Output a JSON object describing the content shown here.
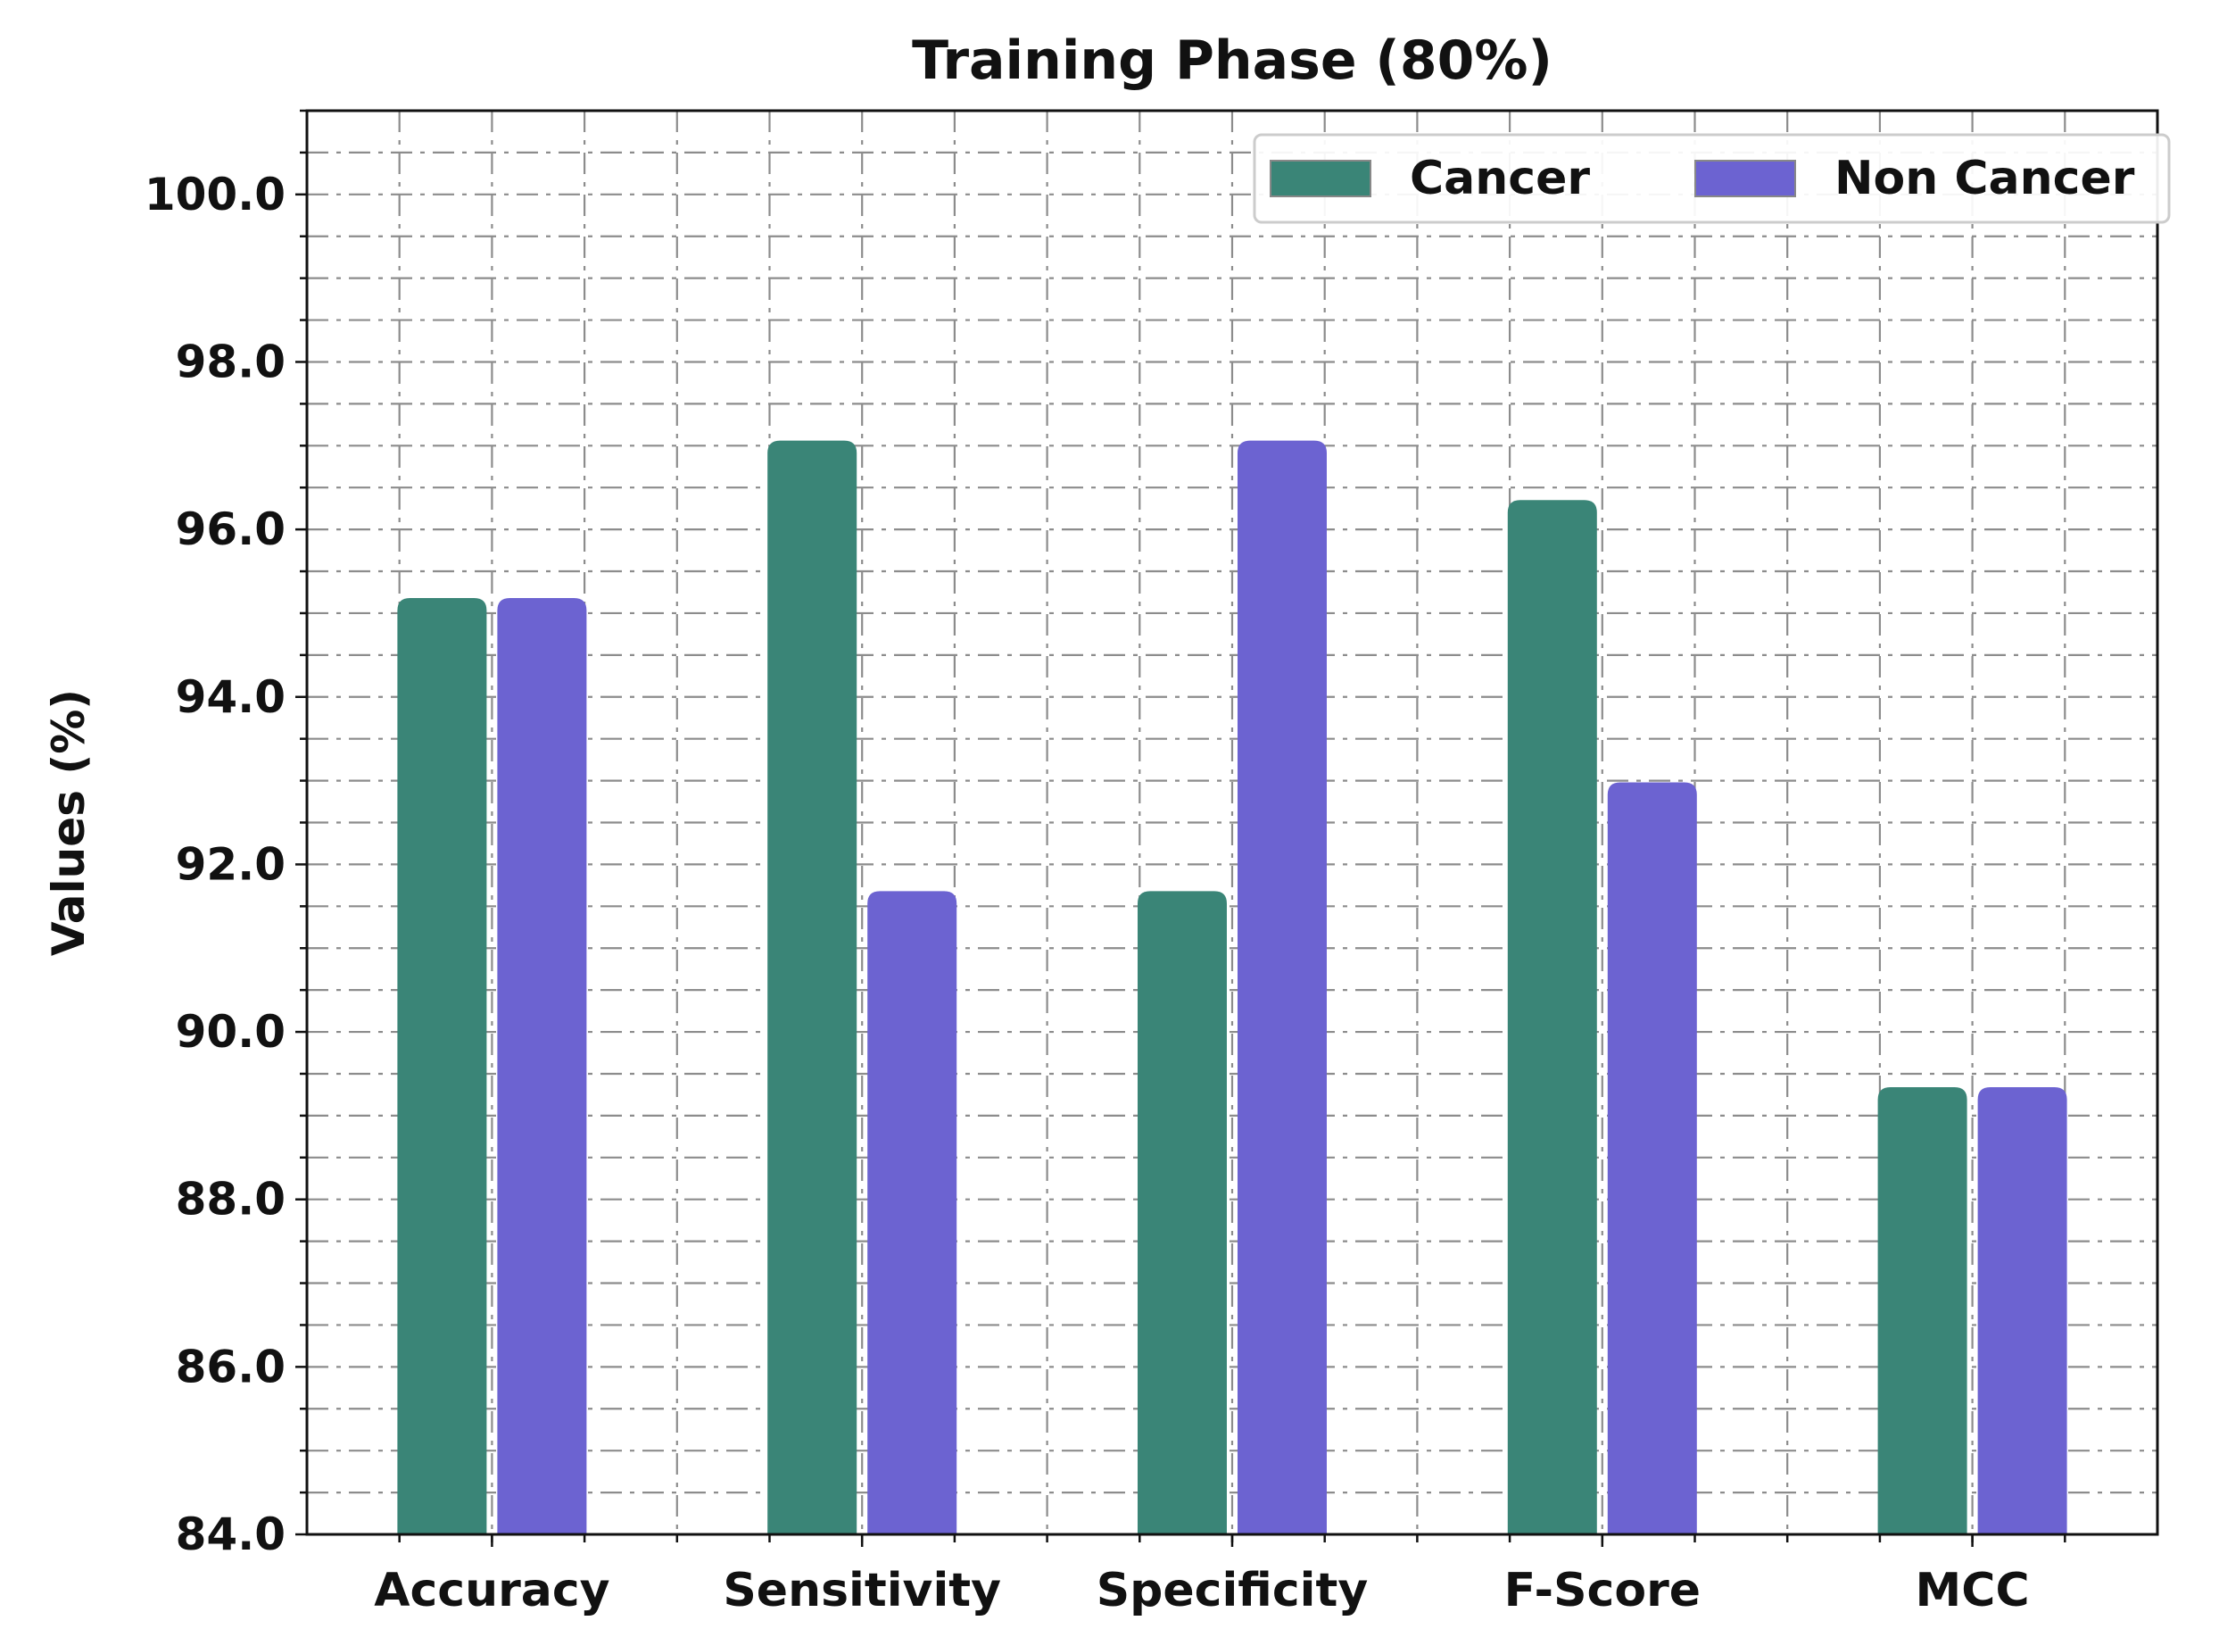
{
  "chart_data": {
    "type": "bar",
    "title": "Training Phase (80%)",
    "xlabel": "",
    "ylabel": "Values (%)",
    "categories": [
      "Accuracy",
      "Sensitivity",
      "Specificity",
      "F-Score",
      "MCC"
    ],
    "series": [
      {
        "name": "Cancer",
        "color": "#3a8577",
        "values": [
          95.18,
          97.06,
          91.68,
          96.35,
          89.34
        ]
      },
      {
        "name": "Non Cancer",
        "color": "#6c63d1",
        "values": [
          95.18,
          91.68,
          97.06,
          92.98,
          89.34
        ]
      }
    ],
    "ylim": [
      84.0,
      101.0
    ],
    "yticks": [
      "84.0",
      "86.0",
      "88.0",
      "90.0",
      "92.0",
      "94.0",
      "96.0",
      "98.0",
      "100.0"
    ],
    "grid": true,
    "legend_position": "top-right"
  }
}
